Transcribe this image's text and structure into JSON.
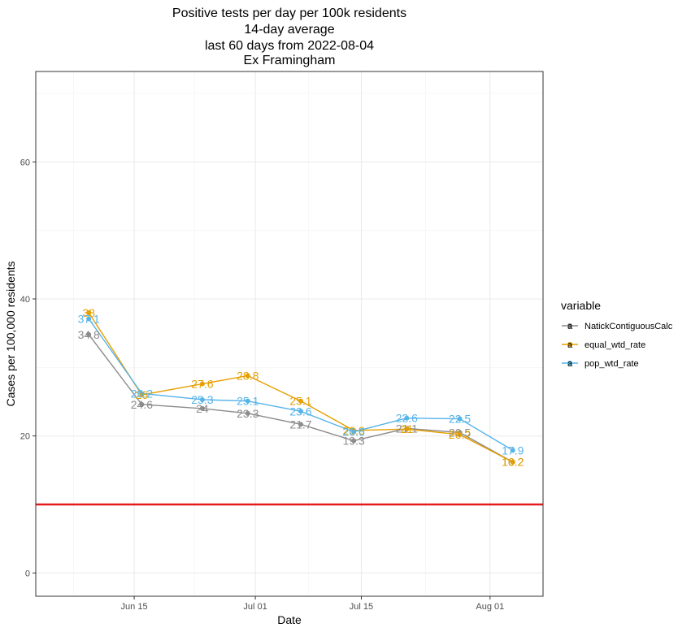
{
  "chart_data": {
    "type": "line",
    "title_lines": [
      "Positive tests per day per 100k residents",
      "14-day average",
      "last 60 days from 2022-08-04",
      "Ex Framingham"
    ],
    "xlabel": "Date",
    "ylabel": "Cases per 100,000 residents",
    "x_ticks": [
      {
        "date": "2022-06-15",
        "label": "Jun 15"
      },
      {
        "date": "2022-07-01",
        "label": "Jul 01"
      },
      {
        "date": "2022-07-15",
        "label": "Jul 15"
      },
      {
        "date": "2022-08-01",
        "label": "Aug 01"
      }
    ],
    "y_ticks": [
      0,
      20,
      40,
      60
    ],
    "xlim": [
      "2022-06-02",
      "2022-08-08"
    ],
    "ylim": [
      -3.4,
      73.2
    ],
    "grid": true,
    "threshold_line": {
      "y": 10,
      "color": "#e41a1c"
    },
    "legend": {
      "title": "variable",
      "position": "right",
      "key_glyph": "a"
    },
    "x": [
      "2022-06-09",
      "2022-06-16",
      "2022-06-24",
      "2022-06-30",
      "2022-07-07",
      "2022-07-14",
      "2022-07-21",
      "2022-07-28",
      "2022-08-04"
    ],
    "series": [
      {
        "name": "NatickContiguousCalc",
        "color": "#8c8c8c",
        "values": [
          34.8,
          24.6,
          24.0,
          23.3,
          21.7,
          19.3,
          21.1,
          20.5,
          16.2
        ],
        "labels": [
          "34.8",
          "24.6",
          "24",
          "23.3",
          "21.7",
          "19.3",
          "21.1",
          "20.5",
          "16.2"
        ]
      },
      {
        "name": "equal_wtd_rate",
        "color": "#e69f00",
        "values": [
          38.0,
          26.0,
          27.6,
          28.8,
          25.1,
          20.8,
          21.0,
          20.2,
          16.2
        ],
        "labels": [
          "38",
          "26",
          "27.6",
          "28.8",
          "25.1",
          "20.8",
          "21",
          "20.2",
          "16.2"
        ]
      },
      {
        "name": "pop_wtd_rate",
        "color": "#56b4e9",
        "values": [
          37.1,
          26.2,
          25.3,
          25.1,
          23.6,
          20.6,
          22.6,
          22.5,
          17.9
        ],
        "labels": [
          "37.1",
          "26.2",
          "25.3",
          "25.1",
          "23.6",
          "20.6",
          "22.6",
          "22.5",
          "17.9"
        ]
      }
    ]
  }
}
